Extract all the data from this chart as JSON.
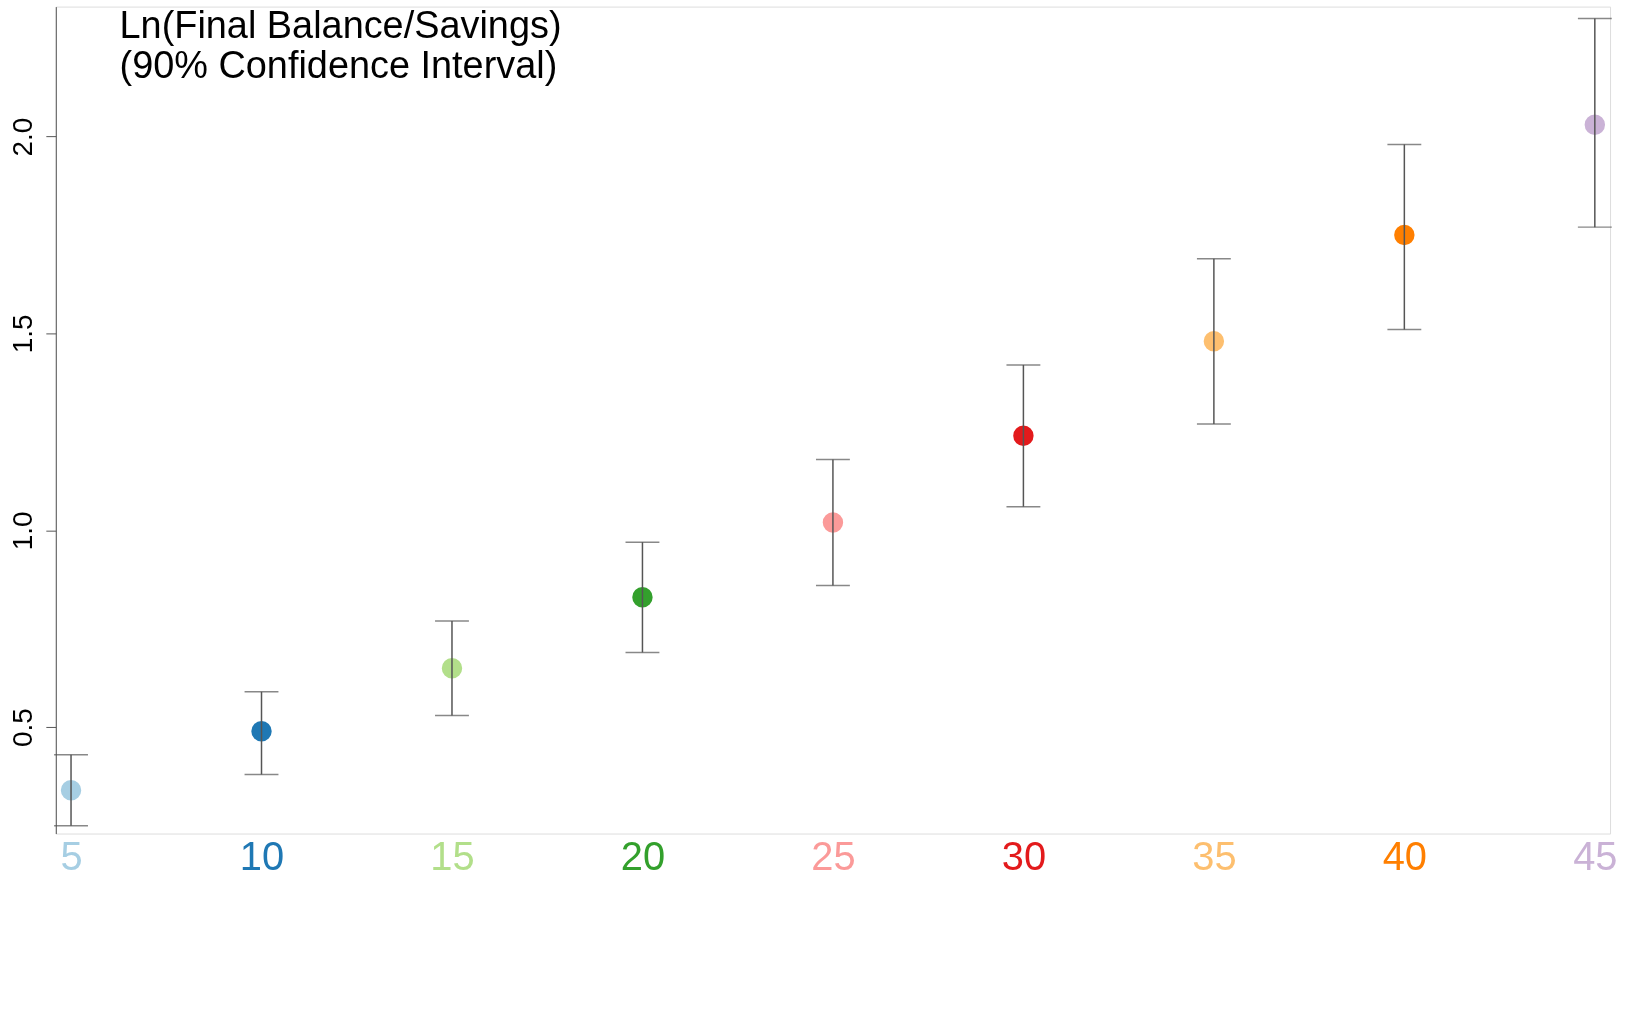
{
  "chart_data": {
    "type": "scatter",
    "title": [
      "Ln(Final Balance/Savings)",
      "(90% Confidence Interval)"
    ],
    "categories": [
      "5",
      "10",
      "15",
      "20",
      "25",
      "30",
      "35",
      "40",
      "45"
    ],
    "values": [
      0.34,
      0.49,
      0.65,
      0.83,
      1.02,
      1.24,
      1.48,
      1.75,
      2.03
    ],
    "errors": [
      [
        0.25,
        0.43
      ],
      [
        0.38,
        0.59
      ],
      [
        0.53,
        0.77
      ],
      [
        0.69,
        0.97
      ],
      [
        0.86,
        1.18
      ],
      [
        1.06,
        1.42
      ],
      [
        1.27,
        1.69
      ],
      [
        1.51,
        1.98
      ],
      [
        1.77,
        2.3
      ]
    ],
    "colors": [
      "#a6cee3",
      "#1f78b4",
      "#b2df8a",
      "#33a02c",
      "#fb9a99",
      "#e31a1c",
      "#fdbf6f",
      "#ff7f00",
      "#cab2d6"
    ],
    "ylim": [
      0.23,
      2.33
    ],
    "yticks": [
      0.5,
      {
        "value": 1,
        "label": "1.0"
      },
      1.5,
      {
        "value": 2,
        "label": "2.0"
      }
    ],
    "marker": "circle",
    "grid": false
  }
}
